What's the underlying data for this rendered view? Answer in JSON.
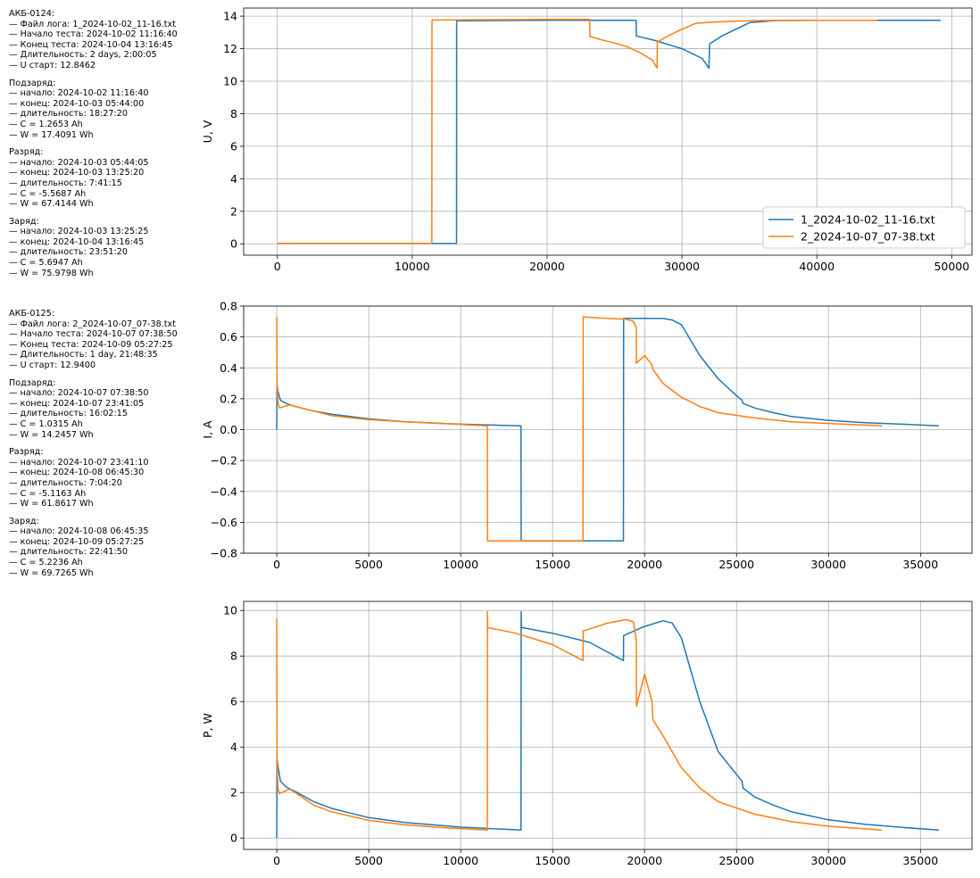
{
  "info_blocks": [
    {
      "header": [
        "АКБ-0124:",
        "— Файл лога: 1_2024-10-02_11-16.txt",
        "— Начало теста: 2024-10-02 11:16:40",
        "— Конец теста: 2024-10-04 13:16:45",
        "— Длительность: 2 days, 2:00:05",
        "— U старт: 12.8462"
      ],
      "sections": [
        {
          "lines": [
            "Подзаряд:",
            "— начало: 2024-10-02 11:16:40",
            "— конец: 2024-10-03 05:44:00",
            "— длительность: 18:27:20",
            "— C = 1.2653 Ah",
            "— W = 17.4091 Wh"
          ]
        },
        {
          "lines": [
            "Разряд:",
            "— начало: 2024-10-03 05:44:05",
            "— конец: 2024-10-03 13:25:20",
            "— длительность: 7:41:15",
            "— C = -5.5687 Ah",
            "— W = 67.4144 Wh"
          ]
        },
        {
          "lines": [
            "Заряд:",
            "— начало: 2024-10-03 13:25:25",
            "— конец: 2024-10-04 13:16:45",
            "— длительность: 23:51:20",
            "— C = 5.6947 Ah",
            "— W = 75.9798 Wh"
          ]
        }
      ]
    },
    {
      "header": [
        "АКБ-0125:",
        "— Файл лога: 2_2024-10-07_07-38.txt",
        "— Начало теста: 2024-10-07 07:38:50",
        "— Конец теста: 2024-10-09 05:27:25",
        "— Длительность: 1 day, 21:48:35",
        "— U старт: 12.9400"
      ],
      "sections": [
        {
          "lines": [
            "Подзаряд:",
            "— начало: 2024-10-07 07:38:50",
            "— конец: 2024-10-07 23:41:05",
            "— длительность: 16:02:15",
            "— C = 1.0315 Ah",
            "— W = 14.2457 Wh"
          ]
        },
        {
          "lines": [
            "Разряд:",
            "— начало: 2024-10-07 23:41:10",
            "— конец: 2024-10-08 06:45:30",
            "— длительность: 7:04:20",
            "— C = -5.1163 Ah",
            "— W = 61.8617 Wh"
          ]
        },
        {
          "lines": [
            "Заряд:",
            "— начало: 2024-10-08 06:45:35",
            "— конец: 2024-10-09 05:27:25",
            "— длительность: 22:41:50",
            "— C = 5.2236 Ah",
            "— W = 69.7265 Wh"
          ]
        }
      ]
    }
  ],
  "colors": {
    "series1": "#1f77b4",
    "series2": "#ff7f0e",
    "grid": "#b0b0b0"
  },
  "chart_data": [
    {
      "type": "line",
      "ylabel": "U, V",
      "xlim": [
        -2500,
        51500
      ],
      "ylim": [
        -0.7,
        14.5
      ],
      "xticks": [
        0,
        10000,
        20000,
        30000,
        40000,
        50000
      ],
      "yticks": [
        0,
        2,
        4,
        6,
        8,
        10,
        12,
        14
      ],
      "grid": true,
      "legend": "lower-right",
      "series": [
        {
          "name": "1_2024-10-02_11-16.txt",
          "x": [
            0,
            13280,
            13290,
            20000,
            26600,
            26620,
            28000,
            30000,
            31500,
            32000,
            32050,
            33000,
            34000,
            35000,
            37000,
            40000,
            45000,
            49200
          ],
          "y": [
            0.02,
            0.02,
            13.72,
            13.74,
            13.75,
            12.78,
            12.5,
            12.0,
            11.4,
            10.8,
            12.3,
            12.8,
            13.2,
            13.6,
            13.73,
            13.74,
            13.74,
            13.74
          ]
        },
        {
          "name": "2_2024-10-07_07-38.txt",
          "x": [
            0,
            11450,
            11460,
            15000,
            20000,
            23150,
            23170,
            24000,
            25000,
            26000,
            27000,
            27800,
            28150,
            28170,
            29000,
            30000,
            31000,
            32000,
            34000,
            36000,
            40000,
            44500
          ],
          "y": [
            0.02,
            0.02,
            13.76,
            13.78,
            13.8,
            13.8,
            12.75,
            12.55,
            12.35,
            12.1,
            11.7,
            11.3,
            10.8,
            12.4,
            12.8,
            13.2,
            13.55,
            13.62,
            13.7,
            13.73,
            13.74,
            13.74
          ]
        }
      ]
    },
    {
      "type": "line",
      "ylabel": "I, A",
      "xlim": [
        -1800,
        37800
      ],
      "ylim": [
        -0.8,
        0.8
      ],
      "xticks": [
        0,
        5000,
        10000,
        15000,
        20000,
        25000,
        30000,
        35000
      ],
      "yticks": [
        -0.8,
        -0.6,
        -0.4,
        -0.2,
        0.0,
        0.2,
        0.4,
        0.6,
        0.8
      ],
      "grid": true,
      "series": [
        {
          "name": "1_2024-10-02_11-16.txt",
          "x": [
            0,
            10,
            60,
            200,
            500,
            1000,
            2000,
            3000,
            5000,
            7000,
            10000,
            13280,
            13290,
            18850,
            18860,
            20000,
            21000,
            21500,
            22000,
            23000,
            24000,
            25000,
            25300,
            25350,
            26000,
            27000,
            28000,
            30000,
            32000,
            34000,
            36000
          ],
          "y": [
            0.0,
            0.29,
            0.25,
            0.19,
            0.17,
            0.15,
            0.12,
            0.1,
            0.07,
            0.05,
            0.035,
            0.025,
            -0.72,
            -0.72,
            0.72,
            0.72,
            0.72,
            0.71,
            0.68,
            0.48,
            0.33,
            0.22,
            0.19,
            0.17,
            0.14,
            0.11,
            0.085,
            0.06,
            0.045,
            0.035,
            0.025
          ]
        },
        {
          "name": "2_2024-10-07_07-38.txt",
          "x": [
            0,
            10,
            60,
            150,
            400,
            700,
            1000,
            2000,
            3000,
            5000,
            7000,
            9000,
            11450,
            11460,
            16650,
            16660,
            18000,
            19000,
            19400,
            19550,
            19560,
            20000,
            20400,
            20450,
            21000,
            22000,
            23000,
            24000,
            26000,
            28000,
            30000,
            32900
          ],
          "y": [
            0.73,
            0.3,
            0.18,
            0.14,
            0.15,
            0.16,
            0.15,
            0.12,
            0.09,
            0.065,
            0.05,
            0.04,
            0.025,
            -0.72,
            -0.72,
            0.73,
            0.72,
            0.715,
            0.7,
            0.66,
            0.43,
            0.48,
            0.42,
            0.39,
            0.3,
            0.21,
            0.15,
            0.11,
            0.075,
            0.05,
            0.04,
            0.025
          ]
        }
      ]
    },
    {
      "type": "line",
      "ylabel": "P, W",
      "xlim": [
        -1800,
        37800
      ],
      "ylim": [
        -0.5,
        10.4
      ],
      "xticks": [
        0,
        5000,
        10000,
        15000,
        20000,
        25000,
        30000,
        35000
      ],
      "yticks": [
        0,
        2,
        4,
        6,
        8,
        10
      ],
      "grid": true,
      "series": [
        {
          "name": "1_2024-10-02_11-16.txt",
          "x": [
            0,
            10,
            60,
            200,
            500,
            1000,
            2000,
            3000,
            5000,
            7000,
            10000,
            13280,
            13290,
            13300,
            15000,
            17000,
            18850,
            18860,
            20000,
            21000,
            21500,
            22000,
            23000,
            24000,
            25300,
            25350,
            26000,
            27000,
            28000,
            30000,
            32000,
            34000,
            36000
          ],
          "y": [
            0.0,
            3.5,
            3.2,
            2.5,
            2.25,
            2.05,
            1.6,
            1.3,
            0.9,
            0.68,
            0.48,
            0.35,
            9.95,
            9.25,
            9.0,
            8.6,
            7.8,
            8.9,
            9.3,
            9.55,
            9.45,
            8.8,
            6.0,
            3.8,
            2.5,
            2.2,
            1.8,
            1.45,
            1.15,
            0.8,
            0.6,
            0.47,
            0.35
          ]
        },
        {
          "name": "2_2024-10-07_07-38.txt",
          "x": [
            0,
            10,
            60,
            150,
            400,
            700,
            1000,
            2000,
            3000,
            5000,
            7000,
            9000,
            11450,
            11460,
            11470,
            13000,
            15000,
            16650,
            16660,
            18000,
            19000,
            19400,
            19550,
            19560,
            20000,
            20400,
            20450,
            21000,
            22000,
            23000,
            24000,
            26000,
            28000,
            30000,
            32900
          ],
          "y": [
            9.65,
            3.5,
            2.2,
            1.95,
            2.05,
            2.15,
            2.0,
            1.45,
            1.15,
            0.78,
            0.58,
            0.46,
            0.35,
            9.95,
            9.25,
            9.0,
            8.5,
            7.8,
            9.1,
            9.45,
            9.6,
            9.5,
            8.7,
            5.8,
            7.2,
            6.0,
            5.2,
            4.5,
            3.1,
            2.2,
            1.6,
            1.05,
            0.72,
            0.52,
            0.35
          ]
        }
      ]
    }
  ]
}
